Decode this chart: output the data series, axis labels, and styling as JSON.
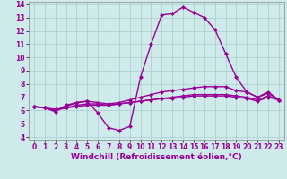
{
  "title": "",
  "xlabel": "Windchill (Refroidissement éolien,°C)",
  "ylabel": "",
  "xlim": [
    -0.5,
    23.5
  ],
  "ylim": [
    3.8,
    14.2
  ],
  "yticks": [
    4,
    5,
    6,
    7,
    8,
    9,
    10,
    11,
    12,
    13,
    14
  ],
  "xticks": [
    0,
    1,
    2,
    3,
    4,
    5,
    6,
    7,
    8,
    9,
    10,
    11,
    12,
    13,
    14,
    15,
    16,
    17,
    18,
    19,
    20,
    21,
    22,
    23
  ],
  "background_color": "#ceeaea",
  "grid_color": "#a8cccc",
  "line_color": "#990099",
  "line1_x": [
    0,
    1,
    2,
    3,
    4,
    5,
    6,
    7,
    8,
    9,
    10,
    11,
    12,
    13,
    14,
    15,
    16,
    17,
    18,
    19,
    20,
    21,
    22,
    23
  ],
  "line1_y": [
    6.3,
    6.2,
    5.9,
    6.4,
    6.6,
    6.7,
    5.8,
    4.7,
    4.5,
    4.8,
    8.5,
    11.0,
    13.2,
    13.3,
    13.8,
    13.4,
    13.0,
    12.1,
    10.3,
    8.5,
    7.4,
    7.0,
    7.4,
    6.8
  ],
  "line2_x": [
    0,
    1,
    2,
    3,
    4,
    5,
    6,
    7,
    8,
    9,
    10,
    11,
    12,
    13,
    14,
    15,
    16,
    17,
    18,
    19,
    20,
    21,
    22,
    23
  ],
  "line2_y": [
    6.3,
    6.2,
    6.0,
    6.3,
    6.6,
    6.7,
    6.6,
    6.5,
    6.6,
    6.8,
    7.0,
    7.2,
    7.4,
    7.5,
    7.6,
    7.7,
    7.8,
    7.8,
    7.8,
    7.5,
    7.4,
    7.0,
    7.3,
    6.8
  ],
  "line3_x": [
    0,
    1,
    2,
    3,
    4,
    5,
    6,
    7,
    8,
    9,
    10,
    11,
    12,
    13,
    14,
    15,
    16,
    17,
    18,
    19,
    20,
    21,
    22,
    23
  ],
  "line3_y": [
    6.3,
    6.2,
    6.0,
    6.2,
    6.4,
    6.5,
    6.5,
    6.4,
    6.5,
    6.6,
    6.7,
    6.8,
    6.9,
    7.0,
    7.1,
    7.2,
    7.2,
    7.2,
    7.2,
    7.1,
    7.0,
    6.8,
    7.1,
    6.8
  ],
  "line4_x": [
    0,
    1,
    2,
    3,
    4,
    5,
    6,
    7,
    8,
    9,
    10,
    11,
    12,
    13,
    14,
    15,
    16,
    17,
    18,
    19,
    20,
    21,
    22,
    23
  ],
  "line4_y": [
    6.3,
    6.2,
    6.1,
    6.2,
    6.3,
    6.4,
    6.4,
    6.4,
    6.5,
    6.6,
    6.7,
    6.8,
    6.9,
    6.9,
    7.0,
    7.1,
    7.1,
    7.1,
    7.1,
    7.0,
    6.9,
    6.7,
    7.0,
    6.8
  ],
  "marker": "D",
  "markersize": 2.5,
  "linewidth": 1.0,
  "tick_fontsize": 5.5,
  "label_fontsize": 6.5
}
